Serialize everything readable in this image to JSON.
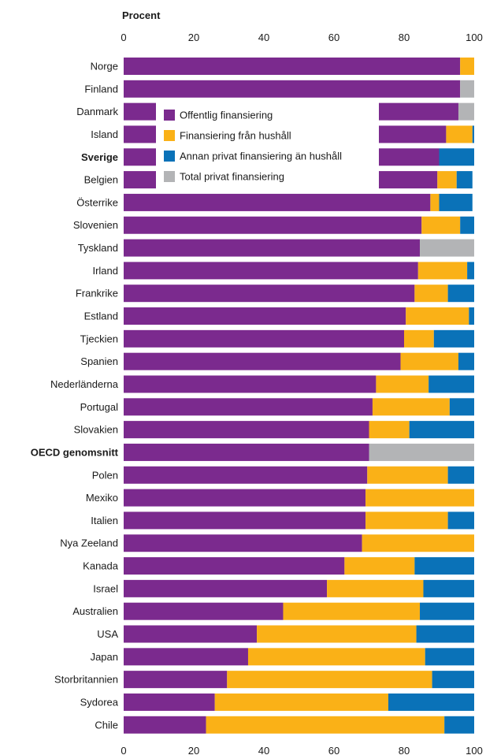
{
  "chart_data": {
    "type": "bar",
    "orientation": "horizontal",
    "stacked": true,
    "unit_label": "Procent",
    "xlim": [
      0,
      100
    ],
    "xticks": [
      0,
      20,
      40,
      60,
      80,
      100
    ],
    "categories": [
      "Norge",
      "Finland",
      "Danmark",
      "Island",
      "Sverige",
      "Belgien",
      "Österrike",
      "Slovenien",
      "Tyskland",
      "Irland",
      "Frankrike",
      "Estland",
      "Tjeckien",
      "Spanien",
      "Nederländerna",
      "Portugal",
      "Slovakien",
      "OECD genomsnitt",
      "Polen",
      "Mexiko",
      "Italien",
      "Nya Zeeland",
      "Kanada",
      "Israel",
      "Australien",
      "USA",
      "Japan",
      "Storbritannien",
      "Sydorea",
      "Chile"
    ],
    "bold_categories": [
      "Sverige",
      "OECD genomsnitt"
    ],
    "series": [
      {
        "name": "Offentlig finansiering",
        "color": "#7b2a8e",
        "values": [
          96,
          96,
          95.5,
          92,
          90,
          89.5,
          87.5,
          85,
          84.5,
          84,
          83,
          80.5,
          80,
          79,
          72,
          71,
          70,
          70,
          69.5,
          69,
          69,
          68,
          63,
          58,
          45.5,
          38,
          35.5,
          29.5,
          26,
          23.5
        ]
      },
      {
        "name": "Finansiering från hushåll",
        "color": "#fab117",
        "values": [
          4,
          0,
          0,
          7.5,
          0,
          5.5,
          2.5,
          11,
          0,
          14,
          9.5,
          18,
          8.5,
          16.5,
          15,
          22,
          11.5,
          0,
          23,
          31,
          23.5,
          32,
          20,
          27.5,
          39,
          45.5,
          50.5,
          58.5,
          49.5,
          68
        ]
      },
      {
        "name": "Annan privat finansiering än hushåll",
        "color": "#0a72b8",
        "values": [
          0,
          0,
          0,
          0.5,
          10,
          4.5,
          9.5,
          4,
          0,
          2,
          7.5,
          1.5,
          11.5,
          4.5,
          13,
          7,
          18.5,
          0,
          7.5,
          0,
          7.5,
          0,
          17,
          14.5,
          15.5,
          16.5,
          14,
          12,
          24.5,
          8.5
        ]
      },
      {
        "name": "Total privat finansiering",
        "color": "#b3b4b6",
        "values": [
          0,
          4,
          4.5,
          0,
          0,
          0,
          0,
          0,
          15.5,
          0,
          0,
          0,
          0,
          0,
          0,
          0,
          0,
          30,
          0,
          0,
          0,
          0,
          0,
          0,
          0,
          0,
          0,
          0,
          0,
          0
        ]
      }
    ],
    "legend_position": "top-center, overlaying bars"
  }
}
